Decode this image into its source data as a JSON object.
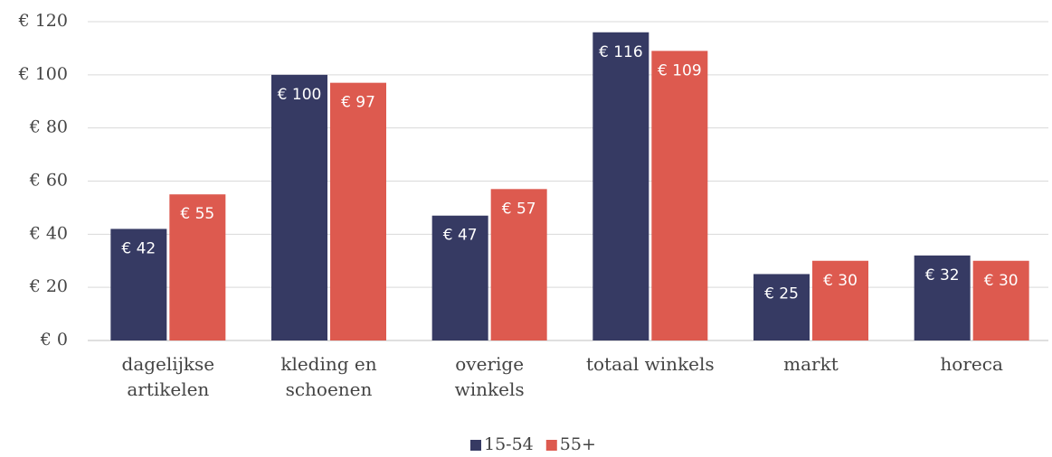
{
  "chart_data": {
    "type": "bar",
    "categories": [
      "dagelijkse\nartikelen",
      "kleding en\nschoenen",
      "overige\nwinkels",
      "totaal winkels",
      "markt",
      "horeca"
    ],
    "series": [
      {
        "name": "15-54",
        "color": "#363a63",
        "values": [
          42,
          100,
          47,
          116,
          25,
          32
        ],
        "value_labels": [
          "€ 42",
          "€ 100",
          "€ 47",
          "€ 116",
          "€ 25",
          "€ 32"
        ]
      },
      {
        "name": "55+",
        "color": "#dd5a4f",
        "values": [
          55,
          97,
          57,
          109,
          30,
          30
        ],
        "value_labels": [
          "€ 55",
          "€ 97",
          "€ 57",
          "€ 109",
          "€ 30",
          "€ 30"
        ]
      }
    ],
    "ylim": [
      0,
      120
    ],
    "yticks": [
      {
        "value": 0,
        "label": "€ 0"
      },
      {
        "value": 20,
        "label": "€ 20"
      },
      {
        "value": 40,
        "label": "€ 40"
      },
      {
        "value": 60,
        "label": "€ 60"
      },
      {
        "value": 80,
        "label": "€ 80"
      },
      {
        "value": 100,
        "label": "€ 100"
      },
      {
        "value": 120,
        "label": "€ 120"
      }
    ],
    "grid": true,
    "legend": "bottom"
  }
}
